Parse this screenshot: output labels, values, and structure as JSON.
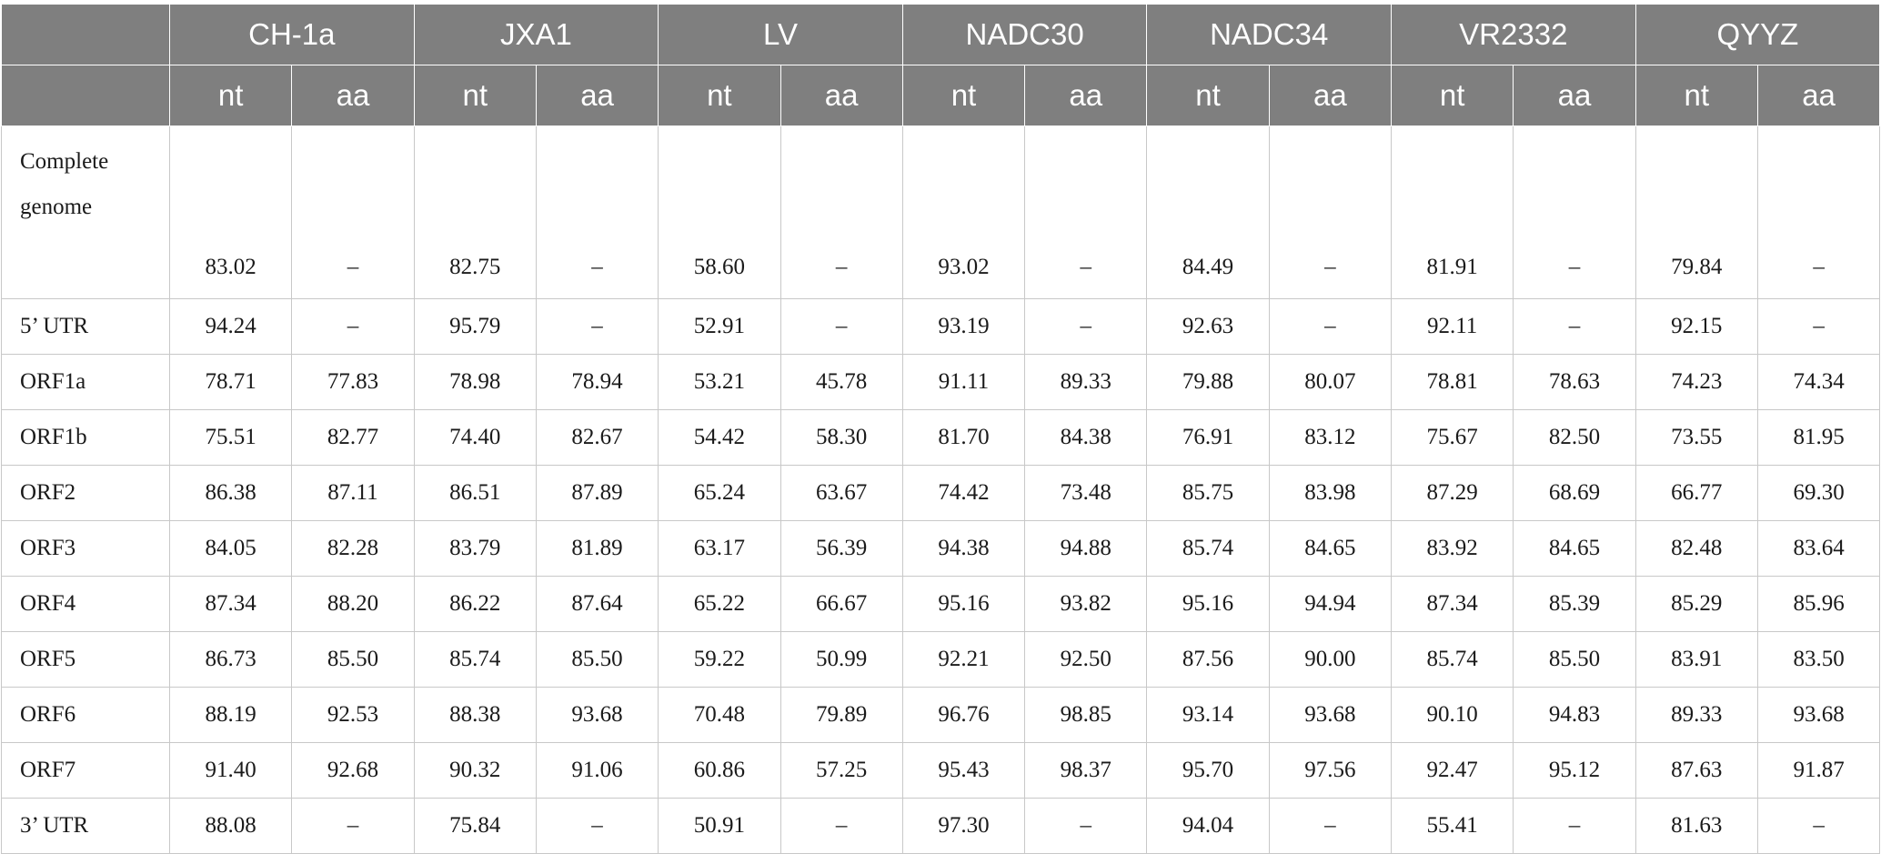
{
  "table": {
    "strains": [
      "CH-1a",
      "JXA1",
      "LV",
      "NADC30",
      "NADC34",
      "VR2332",
      "QYYZ"
    ],
    "subheaders": [
      "nt",
      "aa"
    ],
    "rows": [
      {
        "label": "Complete genome",
        "values": [
          "83.02",
          "–",
          "82.75",
          "–",
          "58.60",
          "–",
          "93.02",
          "–",
          "84.49",
          "–",
          "81.91",
          "–",
          "79.84",
          "–"
        ]
      },
      {
        "label": "5’ UTR",
        "values": [
          "94.24",
          "–",
          "95.79",
          "–",
          "52.91",
          "–",
          "93.19",
          "–",
          "92.63",
          "–",
          "92.11",
          "–",
          "92.15",
          "–"
        ]
      },
      {
        "label": "ORF1a",
        "values": [
          "78.71",
          "77.83",
          "78.98",
          "78.94",
          "53.21",
          "45.78",
          "91.11",
          "89.33",
          "79.88",
          "80.07",
          "78.81",
          "78.63",
          "74.23",
          "74.34"
        ]
      },
      {
        "label": "ORF1b",
        "values": [
          "75.51",
          "82.77",
          "74.40",
          "82.67",
          "54.42",
          "58.30",
          "81.70",
          "84.38",
          "76.91",
          "83.12",
          "75.67",
          "82.50",
          "73.55",
          "81.95"
        ]
      },
      {
        "label": "ORF2",
        "values": [
          "86.38",
          "87.11",
          "86.51",
          "87.89",
          "65.24",
          "63.67",
          "74.42",
          "73.48",
          "85.75",
          "83.98",
          "87.29",
          "68.69",
          "66.77",
          "69.30"
        ]
      },
      {
        "label": "ORF3",
        "values": [
          "84.05",
          "82.28",
          "83.79",
          "81.89",
          "63.17",
          "56.39",
          "94.38",
          "94.88",
          "85.74",
          "84.65",
          "83.92",
          "84.65",
          "82.48",
          "83.64"
        ]
      },
      {
        "label": "ORF4",
        "values": [
          "87.34",
          "88.20",
          "86.22",
          "87.64",
          "65.22",
          "66.67",
          "95.16",
          "93.82",
          "95.16",
          "94.94",
          "87.34",
          "85.39",
          "85.29",
          "85.96"
        ]
      },
      {
        "label": "ORF5",
        "values": [
          "86.73",
          "85.50",
          "85.74",
          "85.50",
          "59.22",
          "50.99",
          "92.21",
          "92.50",
          "87.56",
          "90.00",
          "85.74",
          "85.50",
          "83.91",
          "83.50"
        ]
      },
      {
        "label": "ORF6",
        "values": [
          "88.19",
          "92.53",
          "88.38",
          "93.68",
          "70.48",
          "79.89",
          "96.76",
          "98.85",
          "93.14",
          "93.68",
          "90.10",
          "94.83",
          "89.33",
          "93.68"
        ]
      },
      {
        "label": "ORF7",
        "values": [
          "91.40",
          "92.68",
          "90.32",
          "91.06",
          "60.86",
          "57.25",
          "95.43",
          "98.37",
          "95.70",
          "97.56",
          "92.47",
          "95.12",
          "87.63",
          "91.87"
        ]
      },
      {
        "label": "3’ UTR",
        "values": [
          "88.08",
          "–",
          "75.84",
          "–",
          "50.91",
          "–",
          "97.30",
          "–",
          "94.04",
          "–",
          "55.41",
          "–",
          "81.63",
          "–"
        ]
      }
    ]
  }
}
